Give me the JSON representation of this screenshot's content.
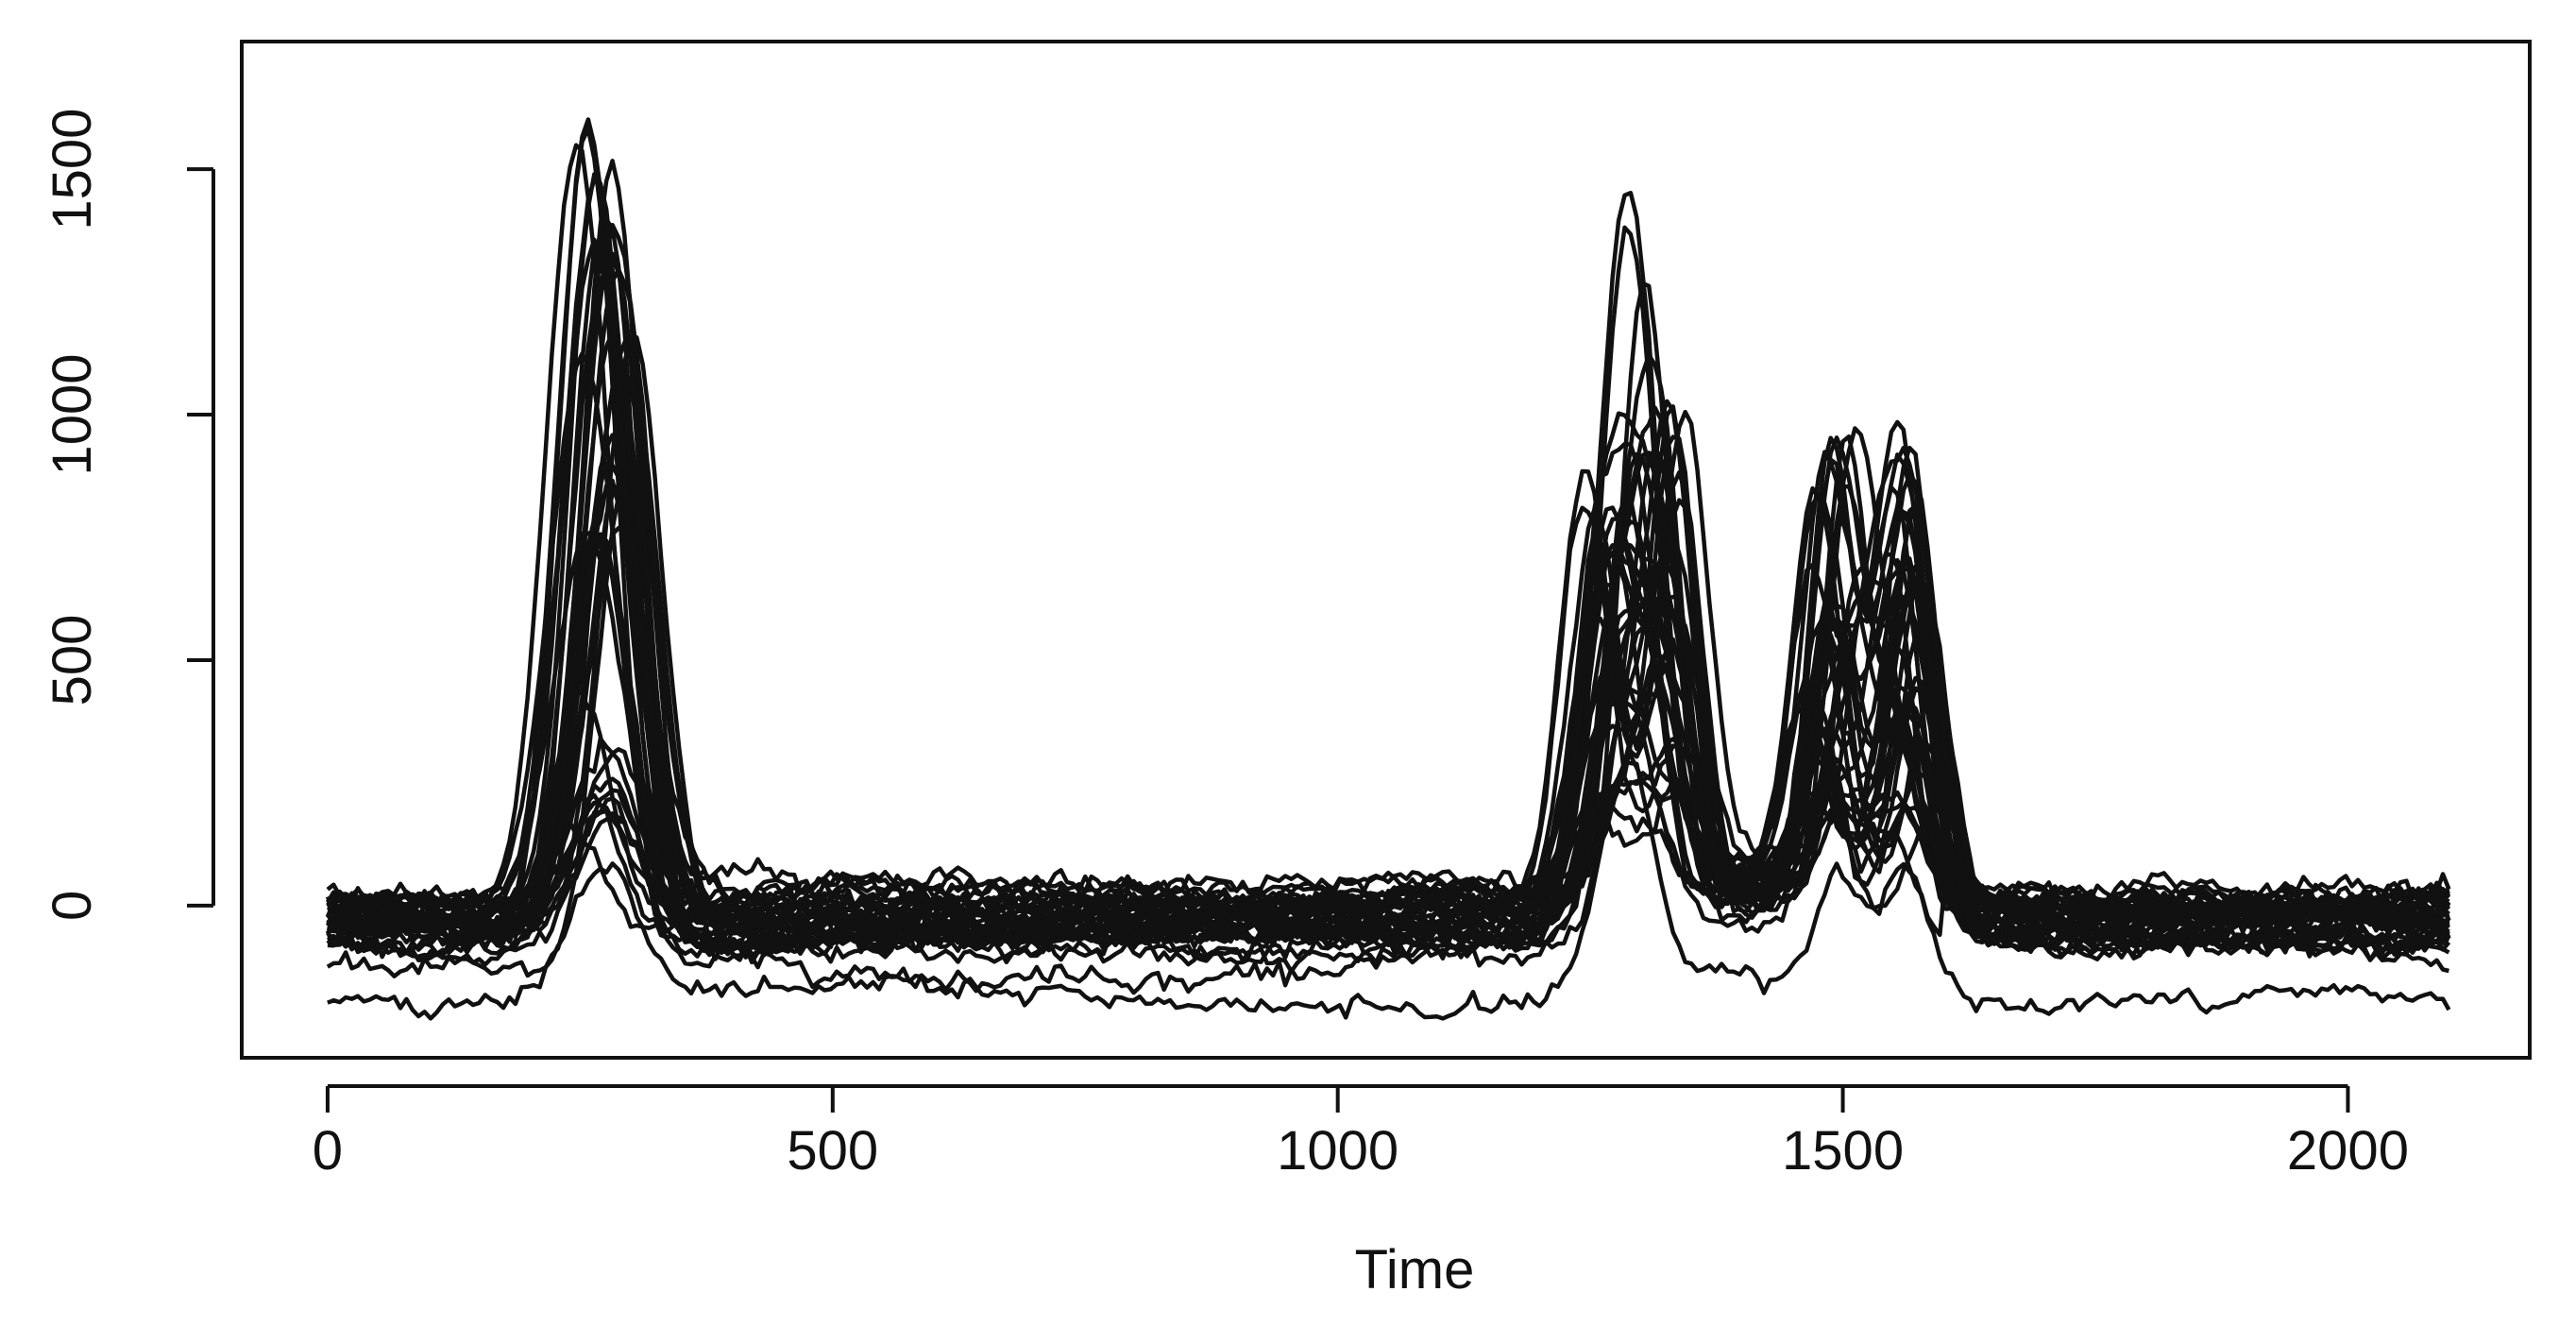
{
  "chart_data": {
    "type": "line",
    "title": "",
    "xlabel": "Time",
    "ylabel": "",
    "xlim": [
      -85,
      2180
    ],
    "ylim": [
      -310,
      1760
    ],
    "x_ticks": [
      0,
      500,
      1000,
      1500,
      2000
    ],
    "x_tick_labels": [
      "0",
      "500",
      "1000",
      "1500",
      "2000"
    ],
    "y_ticks": [
      0,
      500,
      1000,
      1500
    ],
    "y_tick_labels": [
      "0",
      "500",
      "1000",
      "1500"
    ],
    "grid": false,
    "legend": "none",
    "color": "#111111",
    "x_range": [
      0,
      2100
    ],
    "series_count": 40,
    "series_shape": {
      "peaks": [
        {
          "x": 275,
          "height_max": 1680,
          "height_min": 200
        },
        {
          "x": 1270,
          "height_max": 900,
          "height_min": 160
        },
        {
          "x": 1320,
          "height_max": 940,
          "height_min": 150
        },
        {
          "x": 1490,
          "height_max": 950,
          "height_min": 140
        },
        {
          "x": 1565,
          "height_max": 935,
          "height_min": 150
        }
      ],
      "baseline_range": [
        -230,
        170
      ]
    }
  }
}
